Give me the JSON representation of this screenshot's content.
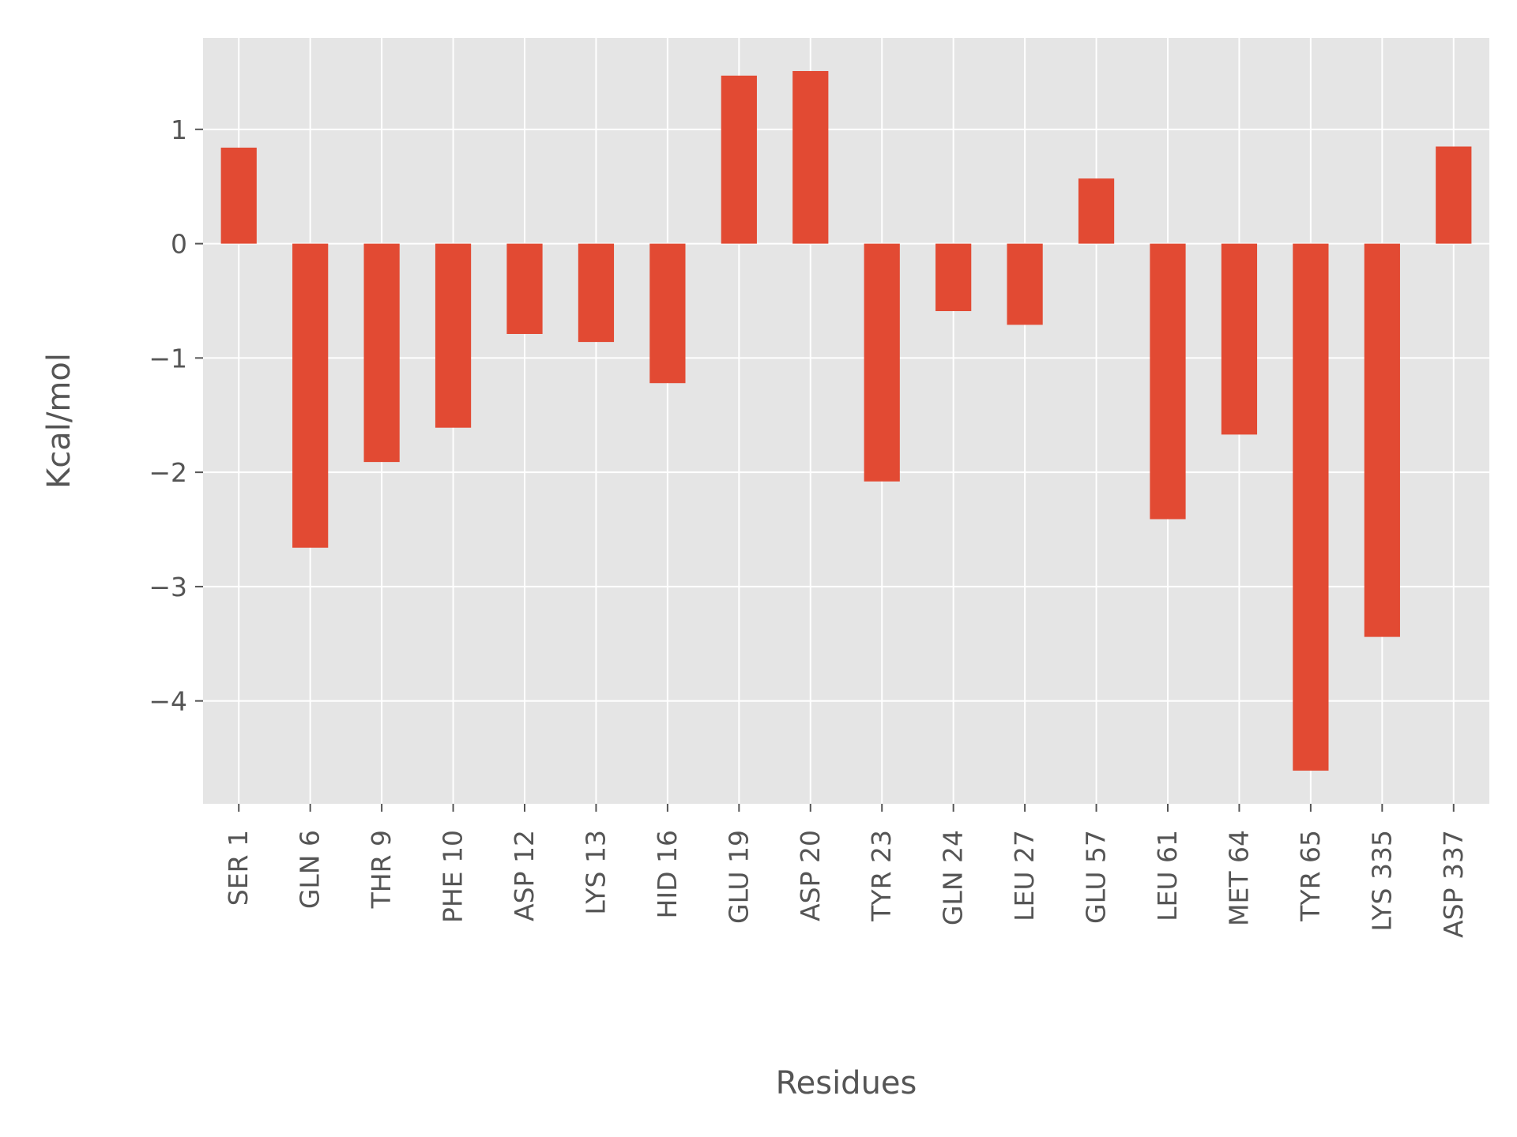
{
  "chart_data": {
    "type": "bar",
    "title": "",
    "xlabel": "Residues",
    "ylabel": "Kcal/mol",
    "categories": [
      "SER 1",
      "GLN 6",
      "THR 9",
      "PHE 10",
      "ASP 12",
      "LYS 13",
      "HID 16",
      "GLU 19",
      "ASP 20",
      "TYR 23",
      "GLN 24",
      "LEU 27",
      "GLU 57",
      "LEU 61",
      "MET 64",
      "TYR 65",
      "LYS 335",
      "ASP 337"
    ],
    "values": [
      0.84,
      -2.66,
      -1.91,
      -1.61,
      -0.79,
      -0.86,
      -1.22,
      1.47,
      1.51,
      -2.08,
      -0.59,
      -0.71,
      0.57,
      -2.41,
      -1.67,
      -4.61,
      -3.44,
      0.85
    ],
    "yticks": [
      1,
      0,
      -1,
      -2,
      -3,
      -4
    ],
    "ytick_labels": [
      "1",
      "0",
      "−1",
      "−2",
      "−3",
      "−4"
    ],
    "ylim": [
      -4.9,
      1.8
    ],
    "grid": true,
    "colors": {
      "bar": "#E24A33",
      "panel": "#E5E5E5",
      "grid": "#FFFFFF",
      "text": "#555555"
    }
  }
}
